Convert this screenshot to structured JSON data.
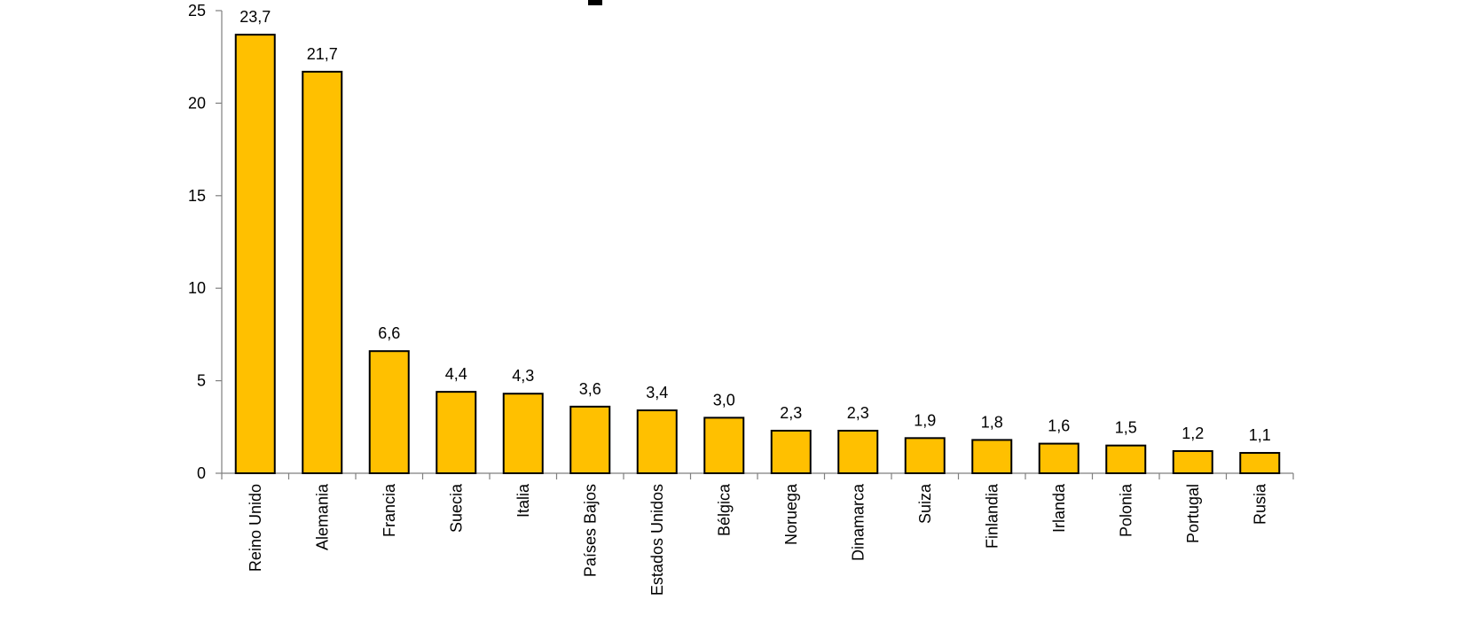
{
  "chart_data": {
    "type": "bar",
    "categories": [
      "Reino Unido",
      "Alemania",
      "Francia",
      "Suecia",
      "Italia",
      "Países Bajos",
      "Estados Unidos",
      "Bélgica",
      "Noruega",
      "Dinamarca",
      "Suiza",
      "Finlandia",
      "Irlanda",
      "Polonia",
      "Portugal",
      "Rusia"
    ],
    "values": [
      23.7,
      21.7,
      6.6,
      4.4,
      4.3,
      3.6,
      3.4,
      3.0,
      2.3,
      2.3,
      1.9,
      1.8,
      1.6,
      1.5,
      1.2,
      1.1
    ],
    "value_labels": [
      "23,7",
      "21,7",
      "6,6",
      "4,4",
      "4,3",
      "3,6",
      "3,4",
      "3,0",
      "2,3",
      "2,3",
      "1,9",
      "1,8",
      "1,6",
      "1,5",
      "1,2",
      "1,1"
    ],
    "y_ticks": [
      0,
      5,
      10,
      15,
      20,
      25
    ],
    "y_tick_labels": [
      "0",
      "5",
      "10",
      "15",
      "20",
      "25"
    ],
    "ylim": [
      0,
      25
    ],
    "grid": false,
    "legend": "none",
    "bar_color": "#FFC000",
    "bar_stroke": "#000000"
  }
}
